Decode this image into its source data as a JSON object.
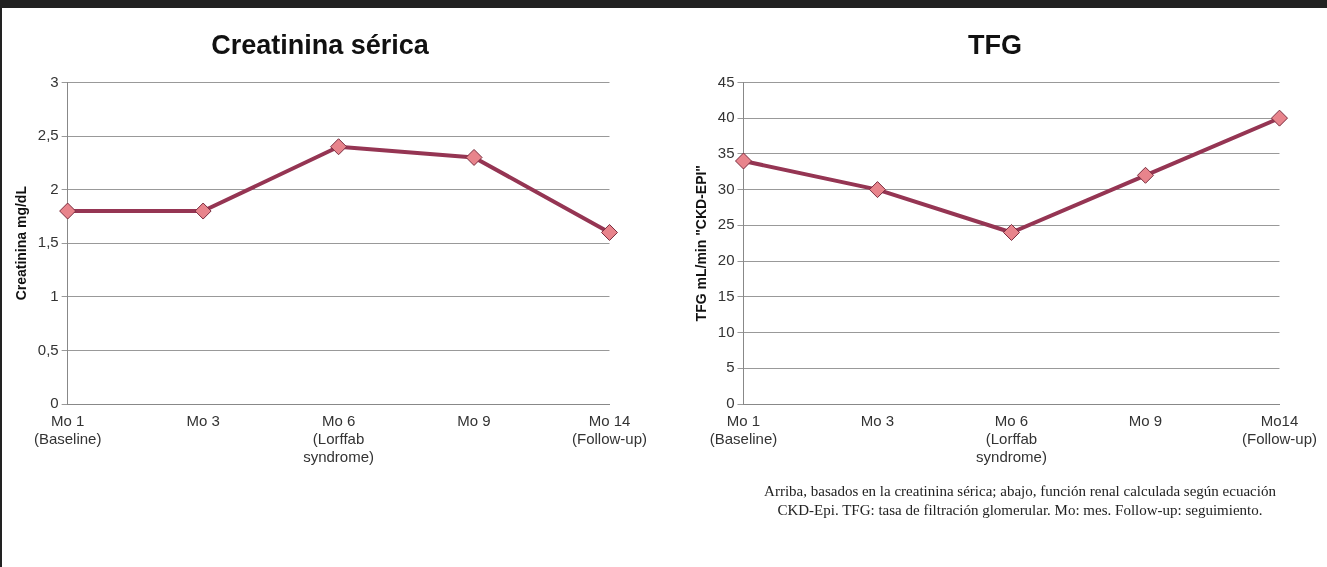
{
  "chart_data": [
    {
      "type": "line",
      "title": "Creatinina sérica",
      "ylabel": "Creatinina mg/dL",
      "categories": [
        "Mo 1\n(Baseline)",
        "Mo 3",
        "Mo 6\n(Lorffab\nsyndrome)",
        "Mo 9",
        "Mo 14\n(Follow-up)"
      ],
      "series": [
        {
          "color": "#953553",
          "values": [
            1.8,
            1.8,
            2.4,
            2.3,
            1.6
          ]
        }
      ],
      "ylim": [
        0,
        3
      ],
      "yticks": [
        0,
        {
          "value": 0.5,
          "label": "0,5"
        },
        1,
        {
          "value": 1.5,
          "label": "1,5"
        },
        2,
        {
          "value": 2.5,
          "label": "2,5"
        },
        3
      ],
      "grid": "y",
      "legend": false,
      "marker": "diamond"
    },
    {
      "type": "line",
      "title": "TFG",
      "ylabel": "TFG mL/min \"CKD-EPI\"",
      "categories": [
        "Mo 1\n(Baseline)",
        "Mo 3",
        "Mo 6\n(Lorffab\nsyndrome)",
        "Mo 9",
        "Mo14\n(Follow-up)"
      ],
      "series": [
        {
          "color": "#953553",
          "values": [
            34,
            30,
            24,
            32,
            40
          ]
        }
      ],
      "ylim": [
        0,
        45
      ],
      "yticks": [
        0,
        5,
        10,
        15,
        20,
        25,
        30,
        35,
        40,
        45
      ],
      "grid": "y",
      "legend": false,
      "marker": "diamond",
      "annotations": [
        "Arriba, basados en la creatinina sérica; abajo, función renal calculada según ecuación CKD-Epi. TFG: tasa de filtración glomerular. Mo: mes. Follow-up: seguimiento."
      ]
    }
  ]
}
